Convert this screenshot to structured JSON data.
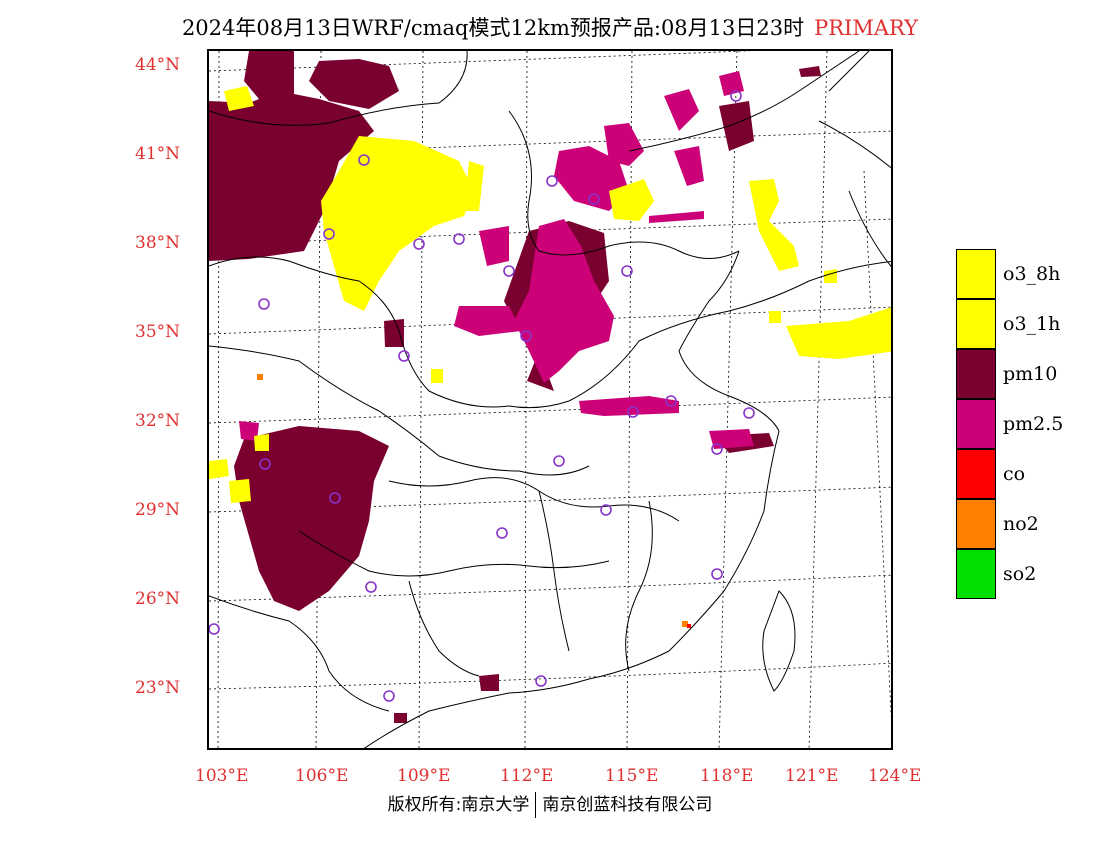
{
  "header": {
    "title": "2024年08月13日WRF/cmaq模式12km预报产品:08月13日23时",
    "status": "PRIMARY"
  },
  "axes": {
    "lat_labels": [
      "44°N",
      "41°N",
      "38°N",
      "35°N",
      "32°N",
      "29°N",
      "26°N",
      "23°N"
    ],
    "lon_labels": [
      "103°E",
      "106°E",
      "109°E",
      "112°E",
      "115°E",
      "118°E",
      "121°E",
      "124°E"
    ]
  },
  "legend": {
    "items": [
      {
        "label": "o3_8h",
        "color": "#ffff00"
      },
      {
        "label": "o3_1h",
        "color": "#ffff00"
      },
      {
        "label": "pm10",
        "color": "#7a0030"
      },
      {
        "label": "pm2.5",
        "color": "#cc0077"
      },
      {
        "label": "co",
        "color": "#ff0000"
      },
      {
        "label": "no2",
        "color": "#ff7f00"
      },
      {
        "label": "so2",
        "color": "#00e000"
      }
    ]
  },
  "footer": {
    "left": "版权所有:南京大学",
    "right": "南京创蓝科技有限公司"
  }
}
